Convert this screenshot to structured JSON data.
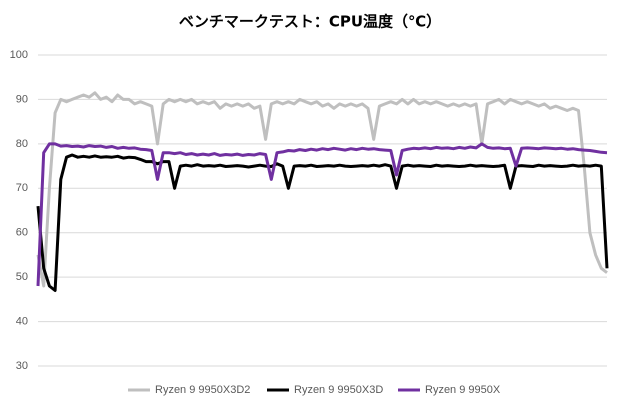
{
  "chart_data": {
    "type": "line",
    "title": "ベンチマークテスト：CPU温度（℃）",
    "ylim": [
      30,
      100
    ],
    "yticks": [
      30,
      40,
      50,
      60,
      70,
      80,
      90,
      100
    ],
    "grid": true,
    "legend": "bottom",
    "series": [
      {
        "name": "Ryzen 9 9950X3D2",
        "color": "#bfbfbf",
        "values": [
          55,
          48,
          70,
          87,
          90,
          89.5,
          90,
          90.5,
          91,
          90.5,
          91.5,
          90,
          90.5,
          89.5,
          91,
          90,
          90,
          89,
          89.5,
          89,
          88.5,
          80,
          89,
          90,
          89.5,
          90,
          89.5,
          90,
          89,
          89.5,
          89,
          89.5,
          88,
          89,
          88.5,
          89,
          88.5,
          89,
          88,
          88.5,
          81,
          89,
          89.5,
          89,
          89.5,
          89,
          90,
          89.5,
          89,
          89.5,
          88.5,
          89,
          88,
          89,
          88.5,
          89,
          88.5,
          89,
          88,
          81,
          88.5,
          89,
          89.5,
          89,
          90,
          89,
          90,
          89,
          89.5,
          89,
          89.5,
          89,
          88.5,
          89,
          88.5,
          89,
          88.5,
          89,
          80,
          89,
          89.5,
          90,
          89,
          90,
          89.5,
          89,
          89.5,
          89,
          88.5,
          89,
          88,
          88.5,
          88,
          87.5,
          88,
          87.5,
          75,
          60,
          55,
          52,
          51
        ]
      },
      {
        "name": "Ryzen 9 9950X3D",
        "color": "#000000",
        "values": [
          66,
          52,
          48,
          47,
          72,
          77,
          77.5,
          77,
          77.2,
          77,
          77.3,
          77,
          77.1,
          77,
          77.2,
          76.8,
          77,
          76.9,
          76.5,
          76,
          76,
          75.5,
          76,
          76,
          70,
          75,
          75.2,
          75,
          75.3,
          75,
          75.1,
          75,
          75.2,
          74.9,
          75,
          75.1,
          75,
          74.8,
          75,
          75.2,
          75,
          74.9,
          75.5,
          75,
          70,
          75,
          75.1,
          75,
          75.2,
          74.9,
          75,
          75.1,
          75,
          75.2,
          75,
          74.9,
          75,
          75.1,
          75,
          75.2,
          75,
          75.3,
          75,
          70,
          75,
          75.2,
          75,
          75.1,
          75,
          74.9,
          75.2,
          75,
          75.1,
          75,
          74.9,
          75,
          75.2,
          75,
          75.1,
          75,
          74.9,
          75,
          75.2,
          70,
          75,
          75.1,
          75,
          74.9,
          75.2,
          75,
          75.1,
          75,
          74.9,
          75,
          75.2,
          75,
          75.1,
          75,
          75.2,
          75,
          52
        ]
      },
      {
        "name": "Ryzen 9 9950X",
        "color": "#7030a0",
        "values": [
          48,
          78,
          80,
          80,
          79.5,
          79.6,
          79.4,
          79.5,
          79.3,
          79.6,
          79.4,
          79.5,
          79.2,
          79.4,
          79,
          79.2,
          79,
          79.1,
          78.8,
          78.7,
          78.5,
          72,
          78,
          78,
          77.8,
          78,
          77.6,
          77.8,
          77.5,
          77.7,
          77.5,
          77.8,
          77.4,
          77.6,
          77.5,
          77.7,
          77.4,
          77.6,
          77.5,
          77.8,
          77.6,
          72,
          78,
          78.2,
          78.5,
          78.4,
          78.7,
          78.5,
          78.8,
          78.6,
          78.9,
          78.7,
          79,
          78.8,
          78.6,
          78.9,
          78.7,
          79,
          78.8,
          78.9,
          78.7,
          78.6,
          78.5,
          73,
          78.5,
          78.8,
          79,
          78.9,
          79.1,
          78.9,
          79.2,
          79,
          79.1,
          78.9,
          79.2,
          79,
          79.3,
          79.1,
          80,
          79.2,
          79,
          79.1,
          78.9,
          79,
          75,
          79,
          79.1,
          79,
          78.9,
          79.1,
          79,
          78.9,
          79,
          78.8,
          78.9,
          78.7,
          78.6,
          78.5,
          78.3,
          78.1,
          78
        ]
      }
    ]
  }
}
